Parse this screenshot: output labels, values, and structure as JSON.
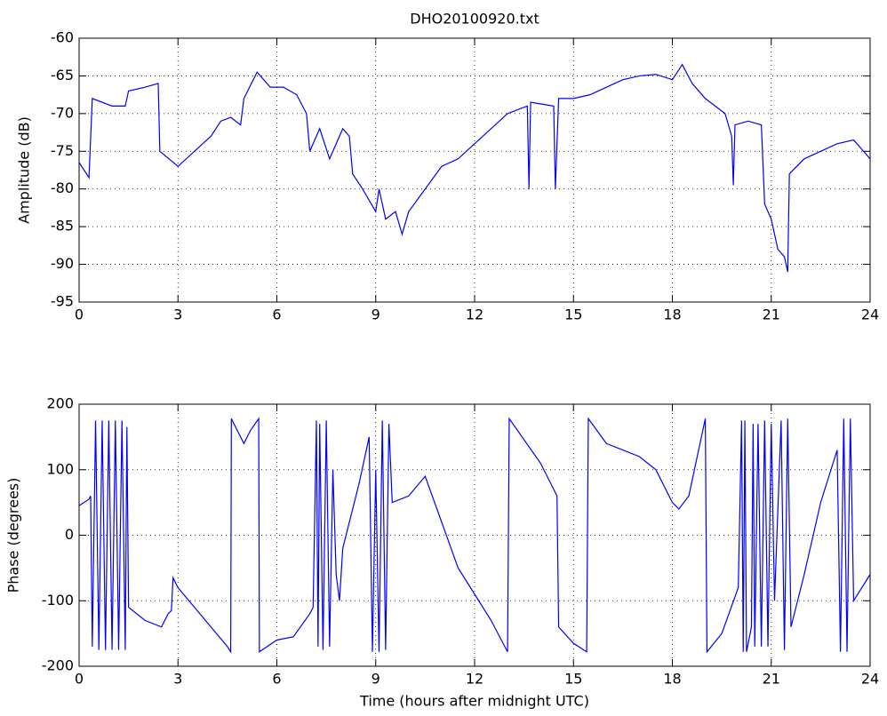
{
  "chart_data": [
    {
      "type": "line",
      "title": "DHO20100920.txt",
      "ylabel": "Amplitude (dB)",
      "color": "#0000ff",
      "grid": true,
      "xlim": [
        0,
        24
      ],
      "xticks": [
        0,
        3,
        6,
        9,
        12,
        15,
        18,
        21,
        24
      ],
      "ylim": [
        -95,
        -60
      ],
      "yticks": [
        -95,
        -90,
        -85,
        -80,
        -75,
        -70,
        -65,
        -60
      ],
      "x": [
        0,
        0.3,
        0.4,
        1.0,
        1.4,
        1.5,
        2.0,
        2.4,
        2.45,
        3.0,
        3.5,
        4.0,
        4.3,
        4.6,
        4.9,
        5.0,
        5.4,
        5.8,
        6.2,
        6.6,
        6.9,
        7.0,
        7.3,
        7.6,
        8.0,
        8.2,
        8.3,
        8.6,
        9.0,
        9.1,
        9.3,
        9.6,
        9.8,
        10.0,
        10.5,
        11.0,
        11.5,
        12.0,
        12.5,
        13.0,
        13.6,
        13.65,
        13.7,
        14.4,
        14.45,
        14.55,
        15.0,
        15.5,
        16.0,
        16.5,
        17.0,
        17.5,
        18.0,
        18.3,
        18.6,
        19.0,
        19.3,
        19.6,
        19.8,
        19.85,
        19.9,
        20.3,
        20.7,
        20.8,
        21.0,
        21.2,
        21.4,
        21.5,
        21.55,
        22.0,
        22.5,
        23.0,
        23.5,
        24.0
      ],
      "values": [
        -76.5,
        -78.5,
        -68,
        -69,
        -69,
        -67,
        -66.5,
        -66,
        -75,
        -77,
        -75,
        -73,
        -71,
        -70.5,
        -71.5,
        -68,
        -64.5,
        -66.5,
        -66.5,
        -67.5,
        -70,
        -75,
        -72,
        -76,
        -72,
        -73,
        -78,
        -80,
        -83,
        -80,
        -84,
        -83,
        -86,
        -83,
        -80,
        -77,
        -76,
        -74,
        -72,
        -70,
        -69,
        -80,
        -68.5,
        -69,
        -80,
        -68,
        -68,
        -67.5,
        -66.5,
        -65.5,
        -65,
        -64.8,
        -65.5,
        -63.5,
        -66,
        -68,
        -69,
        -70,
        -73,
        -79.5,
        -71.5,
        -71,
        -71.5,
        -82,
        -84,
        -88,
        -89,
        -91,
        -78,
        -76,
        -75,
        -74,
        -73.5,
        -76
      ]
    },
    {
      "type": "line",
      "xlabel": "Time (hours after midnight UTC)",
      "ylabel": "Phase (degrees)",
      "color": "#0000ff",
      "grid": true,
      "xlim": [
        0,
        24
      ],
      "xticks": [
        0,
        3,
        6,
        9,
        12,
        15,
        18,
        21,
        24
      ],
      "ylim": [
        -200,
        200
      ],
      "yticks": [
        -200,
        -100,
        0,
        100,
        200
      ],
      "x": [
        0,
        0.3,
        0.35,
        0.4,
        0.5,
        0.6,
        0.7,
        0.8,
        0.9,
        1.0,
        1.1,
        1.2,
        1.3,
        1.4,
        1.45,
        1.5,
        2.0,
        2.5,
        2.7,
        2.8,
        2.85,
        3.0,
        3.5,
        4.0,
        4.5,
        4.6,
        4.62,
        4.8,
        5.0,
        5.2,
        5.45,
        5.47,
        6.0,
        6.5,
        7.0,
        7.1,
        7.2,
        7.25,
        7.3,
        7.4,
        7.5,
        7.6,
        7.7,
        7.8,
        7.9,
        8.0,
        8.5,
        8.8,
        8.9,
        9.0,
        9.1,
        9.2,
        9.3,
        9.4,
        9.5,
        10.0,
        10.5,
        11.0,
        11.5,
        12.0,
        12.5,
        13.0,
        13.05,
        14.0,
        14.5,
        14.55,
        15.0,
        15.4,
        15.45,
        16.0,
        17.0,
        17.5,
        18.0,
        18.2,
        18.5,
        19.0,
        19.05,
        19.5,
        20.0,
        20.1,
        20.15,
        20.2,
        20.25,
        20.4,
        20.45,
        20.5,
        20.6,
        20.7,
        20.8,
        20.9,
        21.0,
        21.1,
        21.3,
        21.4,
        21.5,
        21.6,
        22.0,
        22.5,
        23.0,
        23.1,
        23.2,
        23.3,
        23.4,
        23.5,
        24.0
      ],
      "values": [
        45,
        55,
        60,
        -170,
        175,
        -175,
        175,
        -175,
        175,
        -175,
        175,
        -175,
        175,
        -175,
        165,
        -110,
        -130,
        -140,
        -120,
        -115,
        -65,
        -80,
        -110,
        -140,
        -170,
        -178,
        178,
        160,
        140,
        160,
        178,
        -178,
        -160,
        -155,
        -120,
        -110,
        175,
        -170,
        170,
        -175,
        175,
        -170,
        100,
        -60,
        -100,
        -20,
        80,
        150,
        -178,
        100,
        -178,
        175,
        -175,
        170,
        50,
        60,
        90,
        20,
        -50,
        -90,
        -130,
        -178,
        178,
        110,
        60,
        -140,
        -165,
        -178,
        178,
        140,
        120,
        100,
        50,
        40,
        60,
        178,
        -178,
        -150,
        -80,
        175,
        -178,
        175,
        -178,
        -140,
        170,
        -170,
        170,
        -170,
        175,
        -170,
        170,
        -100,
        175,
        -175,
        178,
        -140,
        -60,
        50,
        130,
        -178,
        178,
        -178,
        178,
        -100,
        -60
      ]
    }
  ]
}
